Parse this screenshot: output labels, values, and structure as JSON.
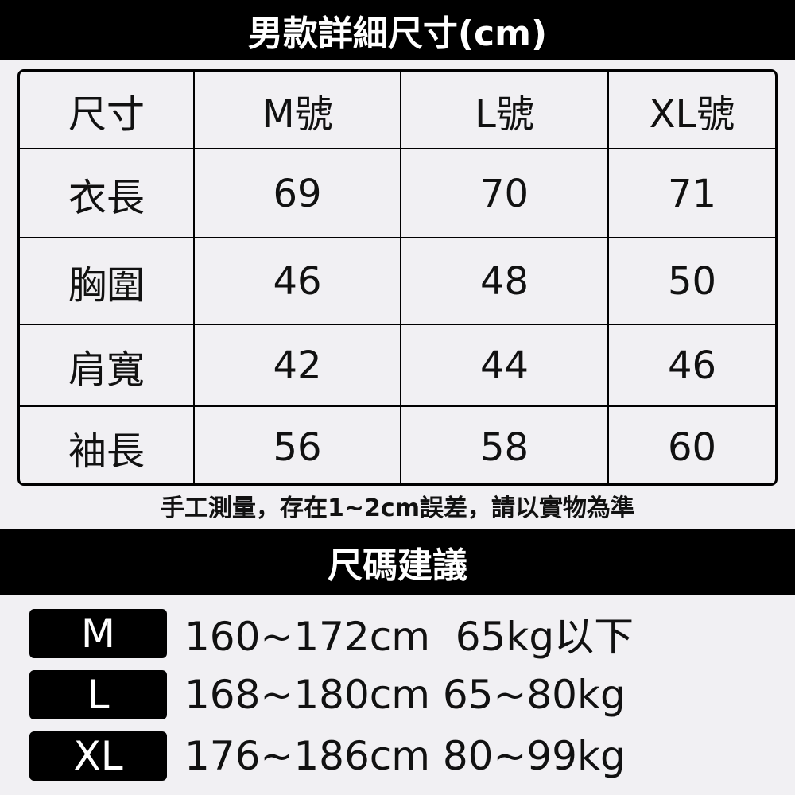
{
  "title": "男款詳細尺寸(cm)",
  "table": {
    "headers": [
      "尺寸",
      "M號",
      "L號",
      "XL號"
    ],
    "rows": [
      [
        "衣長",
        "69",
        "70",
        "71"
      ],
      [
        "胸圍",
        "46",
        "48",
        "50"
      ],
      [
        "肩寬",
        "42",
        "44",
        "46"
      ],
      [
        "袖長",
        "56",
        "58",
        "60"
      ]
    ]
  },
  "note": "手工測量，存在1~2cm誤差，請以實物為準",
  "suggestion_title": "尺碼建議",
  "suggestions": [
    {
      "size": "M",
      "text": "160~172cm  65kg以下"
    },
    {
      "size": "L",
      "text": "168~180cm 65~80kg"
    },
    {
      "size": "XL",
      "text": "176~186cm 80~99kg"
    }
  ]
}
